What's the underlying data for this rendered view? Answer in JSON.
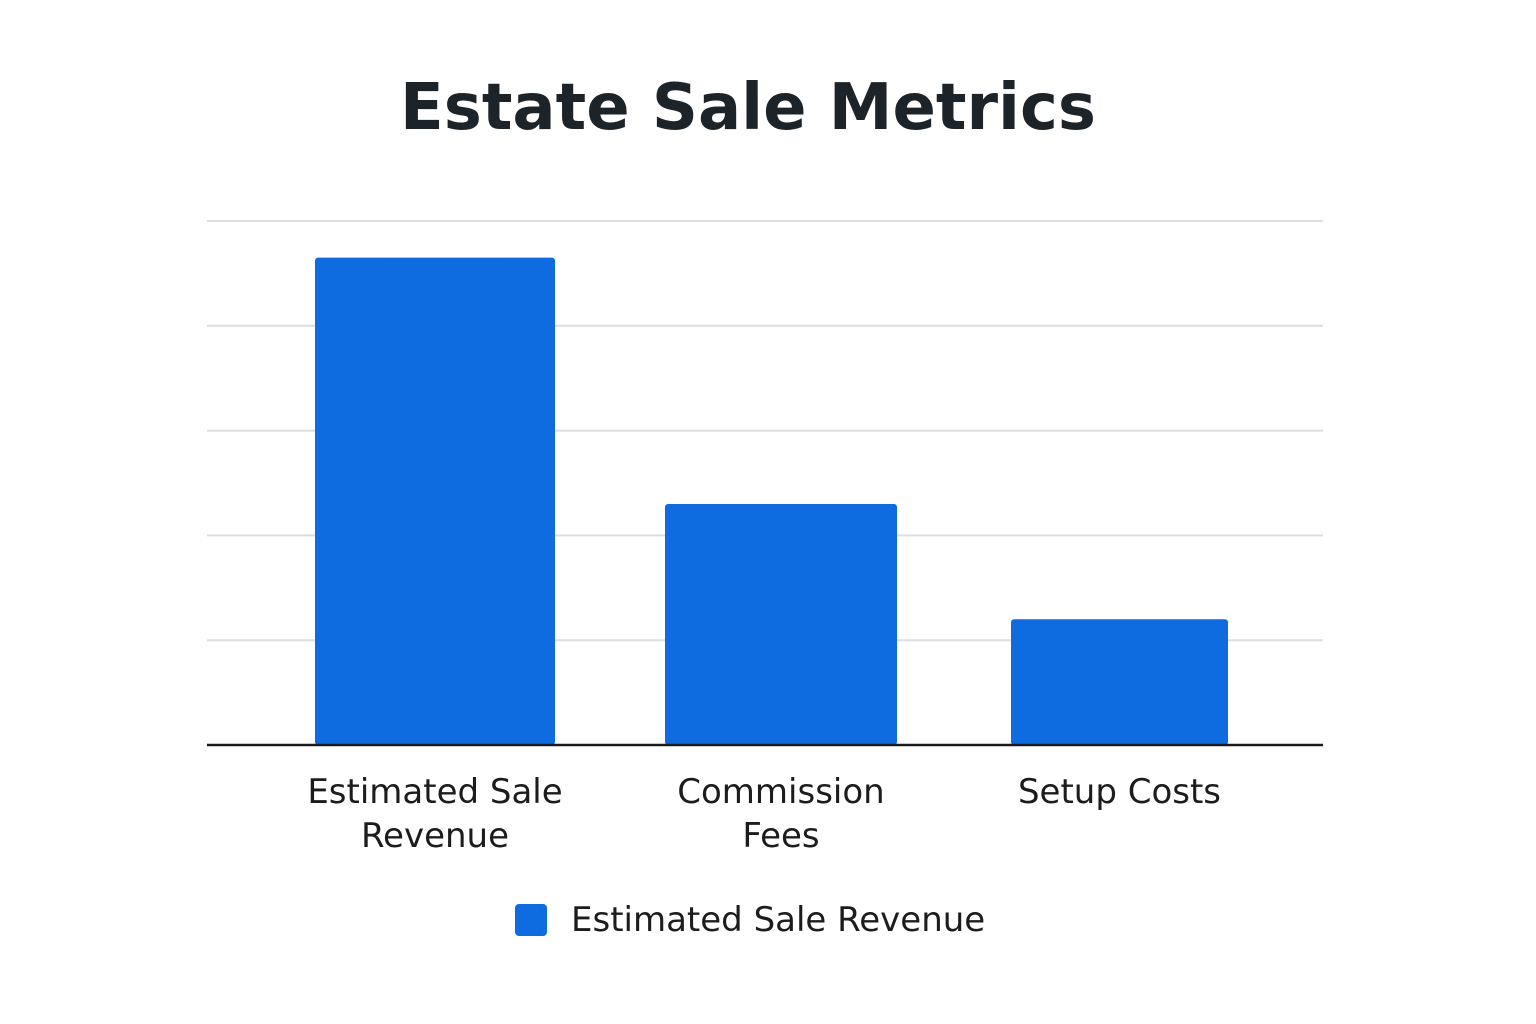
{
  "chart_data": {
    "type": "bar",
    "title": "Estate Sale Metrics",
    "categories": [
      "Estimated Sale\nRevenue",
      "Commission\nFees",
      "Setup Costs"
    ],
    "series": [
      {
        "name": "Estimated Sale Revenue",
        "values": [
          93,
          46,
          24
        ]
      }
    ],
    "ylim": [
      0,
      100
    ],
    "yticks": [
      0,
      20,
      40,
      60,
      80,
      100
    ],
    "grid": true,
    "legend_position": "bottom-center",
    "xlabel": "",
    "ylabel": "",
    "colors": {
      "bar": "#0f6be0",
      "grid": "#dedede",
      "axis": "#1a1a1a",
      "title": "#1c2329"
    }
  }
}
